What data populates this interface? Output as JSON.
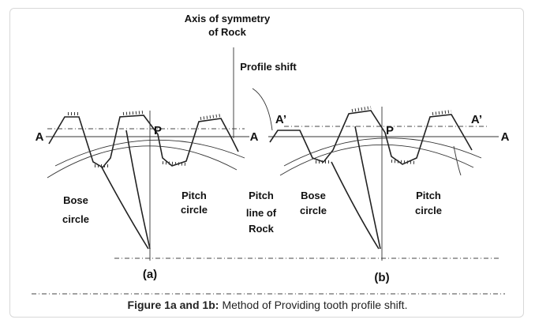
{
  "figure": {
    "axis_of_symmetry": [
      "Axis of symmetry",
      "of Rock"
    ],
    "profile_shift": "Profile shift",
    "a_left_a": "A",
    "p_a": "P",
    "a_right_a": "A",
    "a_prime_left_b": "A’",
    "p_b": "P",
    "a_prime_right_b": "A’",
    "a_right_b": "A",
    "bose_circle_a": [
      "Bose",
      "circle"
    ],
    "pitch_circle_a": [
      "Pitch",
      "circle"
    ],
    "pitch_line_of_rock": [
      "Pitch",
      "line of",
      "Rock"
    ],
    "bose_circle_b": [
      "Bose",
      "circle"
    ],
    "pitch_circle_b": [
      "Pitch",
      "circle"
    ],
    "panel_a": "(a)",
    "panel_b": "(b)"
  },
  "caption": {
    "label": "Figure 1a and 1b:",
    "text": "Method of Providing tooth profile shift."
  }
}
